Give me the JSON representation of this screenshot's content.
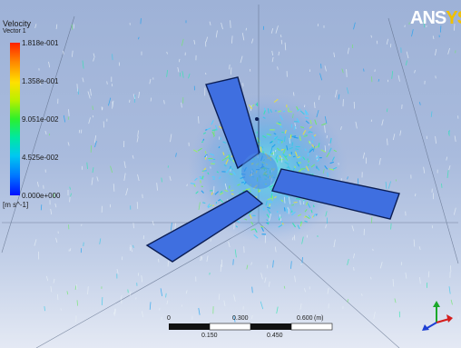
{
  "logo": {
    "main": "ANS",
    "accent": "YS"
  },
  "legend": {
    "title": "Velocity",
    "subtitle": "Vector 1",
    "values": [
      "1.818e-001",
      "1.358e-001",
      "9.051e-002",
      "4.525e-002",
      "0.000e+000"
    ],
    "unit": "[m s^-1]"
  },
  "scale_bar": {
    "top_labels": [
      "0",
      "0.300",
      "0.600"
    ],
    "unit": "(m)",
    "bottom_labels": [
      "0.150",
      "0.450"
    ]
  },
  "colors": {
    "background_top": "#9eb2d7",
    "background_bottom": "#e4e9f4",
    "blade": "#3f6fe0",
    "blade_edge": "#0b1e55",
    "logo_accent": "#f0c000"
  },
  "icons": {
    "axis_triad": "xyz-axis-triad-icon",
    "logo": "ansys-logo"
  }
}
